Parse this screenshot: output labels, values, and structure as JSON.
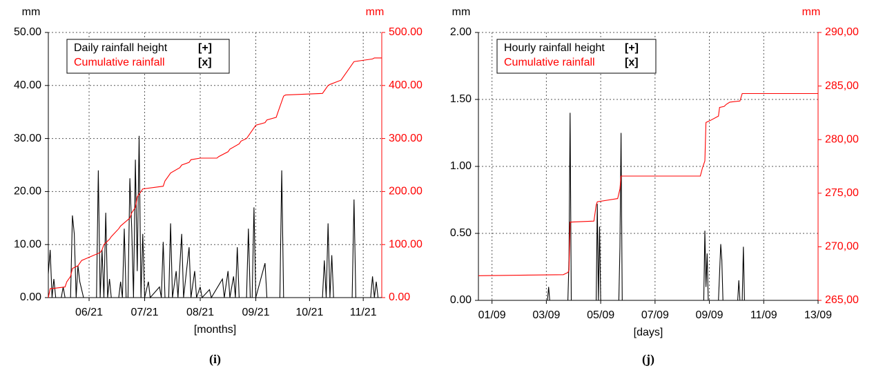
{
  "chart_data": [
    {
      "type": "line",
      "y_label": "mm",
      "y2_label": "mm",
      "x_label": "[months]",
      "caption": "(i)",
      "grid": true,
      "xlim": [
        0,
        180
      ],
      "xticks": [
        {
          "value": 22,
          "label": "06/21"
        },
        {
          "value": 52,
          "label": "07/21"
        },
        {
          "value": 82,
          "label": "08/21"
        },
        {
          "value": 112,
          "label": "09/21"
        },
        {
          "value": 141,
          "label": "10/21"
        },
        {
          "value": 170,
          "label": "11/21"
        }
      ],
      "ylim": [
        0,
        50
      ],
      "yticks": [
        {
          "value": 0,
          "label": "0.00"
        },
        {
          "value": 10,
          "label": "10.00"
        },
        {
          "value": 20,
          "label": "20.00"
        },
        {
          "value": 30,
          "label": "30.00"
        },
        {
          "value": 40,
          "label": "40.00"
        },
        {
          "value": 50,
          "label": "50.00"
        }
      ],
      "y2lim": [
        0,
        500
      ],
      "y2ticks": [
        {
          "value": 0,
          "label": "0.00"
        },
        {
          "value": 100,
          "label": "100.00"
        },
        {
          "value": 200,
          "label": "200.00"
        },
        {
          "value": 300,
          "label": "300.00"
        },
        {
          "value": 400,
          "label": "400.00"
        },
        {
          "value": 500,
          "label": "500.00"
        }
      ],
      "y2color": "#ff0000",
      "series": [
        {
          "name": "Daily rainfall height",
          "marker_label": "[+]",
          "color": "#000000",
          "x": [
            0,
            1,
            2,
            3,
            4,
            7,
            8,
            9,
            12,
            13,
            14,
            15,
            16,
            17,
            19,
            26,
            27,
            28,
            29,
            30,
            31,
            32,
            33,
            34,
            38,
            39,
            40,
            41,
            42,
            43,
            44,
            45,
            46,
            47,
            48,
            49,
            50,
            51,
            52,
            54,
            55,
            60,
            61,
            62,
            63,
            65,
            66,
            67,
            69,
            70,
            72,
            73,
            76,
            77,
            79,
            80,
            82,
            83,
            87,
            88,
            94,
            95,
            97,
            98,
            100,
            101,
            102,
            103,
            107,
            108,
            109,
            110,
            111,
            112,
            117,
            118,
            125,
            126,
            127,
            148,
            149,
            150,
            151,
            152,
            153,
            154,
            164,
            165,
            166,
            174,
            175,
            176,
            177,
            178,
            180
          ],
          "values": [
            4.5,
            9,
            0,
            3.5,
            0,
            0,
            2,
            0,
            0,
            15.5,
            12,
            0,
            6,
            3,
            0,
            0,
            24,
            0,
            9,
            0,
            16,
            0,
            3.5,
            0,
            0,
            3,
            0,
            13,
            0,
            0,
            22.5,
            13,
            0,
            26,
            5,
            30.5,
            0,
            12,
            0,
            3,
            0,
            2,
            0,
            10.5,
            0,
            0,
            14,
            0,
            5,
            0,
            12,
            0,
            9.5,
            0,
            5,
            0,
            2,
            0,
            1.5,
            0,
            3.5,
            0,
            5,
            0,
            4,
            0,
            9.5,
            0,
            0,
            13,
            0,
            0,
            17,
            0,
            6.5,
            0,
            0,
            24,
            0,
            0,
            7,
            0,
            14,
            0,
            8,
            0,
            0,
            18.5,
            0,
            0,
            4,
            0,
            3,
            0,
            0
          ]
        },
        {
          "name": "Cumulative rainfall",
          "marker_label": "[x]",
          "color": "#ff0000",
          "axis": "y2",
          "x": [
            0,
            1,
            2,
            9,
            10,
            12,
            13,
            16,
            17,
            18,
            28,
            29,
            30,
            33,
            34,
            38,
            39,
            44,
            45,
            47,
            48,
            50,
            51,
            62,
            63,
            65,
            66,
            71,
            72,
            76,
            77,
            82,
            91,
            92,
            97,
            98,
            103,
            104,
            107,
            108,
            111,
            112,
            117,
            118,
            123,
            124,
            127,
            128,
            148,
            149,
            151,
            152,
            158,
            159,
            164,
            165,
            175,
            176,
            180
          ],
          "values": [
            0,
            17,
            17,
            20,
            30,
            40,
            55,
            60,
            65,
            70,
            85,
            90,
            100,
            110,
            115,
            130,
            135,
            150,
            160,
            170,
            190,
            200,
            205,
            210,
            220,
            230,
            235,
            245,
            250,
            255,
            260,
            263,
            263,
            266,
            275,
            280,
            290,
            295,
            300,
            305,
            320,
            325,
            330,
            335,
            340,
            350,
            380,
            382,
            385,
            390,
            400,
            402,
            410,
            415,
            440,
            445,
            450,
            452,
            452
          ]
        }
      ]
    },
    {
      "type": "line",
      "y_label": "mm",
      "y2_label": "mm",
      "x_label": "[days]",
      "caption": "(j)",
      "grid": true,
      "xlim": [
        0,
        300
      ],
      "xticks": [
        {
          "value": 12,
          "label": "01/09"
        },
        {
          "value": 60,
          "label": "03/09"
        },
        {
          "value": 108,
          "label": "05/09"
        },
        {
          "value": 156,
          "label": "07/09"
        },
        {
          "value": 204,
          "label": "09/09"
        },
        {
          "value": 252,
          "label": "11/09"
        },
        {
          "value": 300,
          "label": "13/09"
        }
      ],
      "ylim": [
        0,
        2
      ],
      "yticks": [
        {
          "value": 0,
          "label": "0.00"
        },
        {
          "value": 0.5,
          "label": "0.50"
        },
        {
          "value": 1,
          "label": "1.00"
        },
        {
          "value": 1.5,
          "label": "1.50"
        },
        {
          "value": 2,
          "label": "2.00"
        }
      ],
      "y2lim": [
        265,
        290
      ],
      "y2ticks": [
        {
          "value": 265,
          "label": "265,00"
        },
        {
          "value": 270,
          "label": "270,00"
        },
        {
          "value": 275,
          "label": "275,00"
        },
        {
          "value": 280,
          "label": "280,00"
        },
        {
          "value": 285,
          "label": "285,00"
        },
        {
          "value": 290,
          "label": "290,00"
        }
      ],
      "y2color": "#ff0000",
      "series": [
        {
          "name": "Hourly rainfall height",
          "marker_label": "[+]",
          "color": "#000000",
          "x": [
            0,
            61,
            62,
            63,
            79,
            80,
            81,
            82,
            104,
            105,
            106,
            107,
            108,
            124,
            125,
            126,
            127,
            199,
            200,
            201,
            202,
            203,
            212,
            213,
            214,
            215,
            216,
            229,
            230,
            231,
            233,
            234,
            235,
            300
          ],
          "values": [
            0,
            0,
            0.1,
            0,
            0,
            0.3,
            1.4,
            0,
            0,
            0.72,
            0,
            0.55,
            0,
            0,
            0.4,
            1.25,
            0,
            0,
            0.52,
            0.1,
            0.35,
            0,
            0,
            0.2,
            0.42,
            0.3,
            0,
            0,
            0.15,
            0,
            0,
            0.4,
            0,
            0
          ]
        },
        {
          "name": "Cumulative rainfall",
          "marker_label": "[x]",
          "color": "#ff0000",
          "axis": "y2",
          "x": [
            0,
            75,
            79,
            80,
            81,
            102,
            104,
            105,
            123,
            125,
            126,
            196,
            198,
            200,
            201,
            205,
            212,
            213,
            217,
            219,
            222,
            231,
            233,
            300
          ],
          "values": [
            267.3,
            267.4,
            267.6,
            267.8,
            272.3,
            272.4,
            273.9,
            274.2,
            274.5,
            275.4,
            276.6,
            276.6,
            277.4,
            278.0,
            281.6,
            281.8,
            282.2,
            283.0,
            283.1,
            283.3,
            283.5,
            283.6,
            284.3,
            284.3
          ]
        }
      ]
    }
  ]
}
